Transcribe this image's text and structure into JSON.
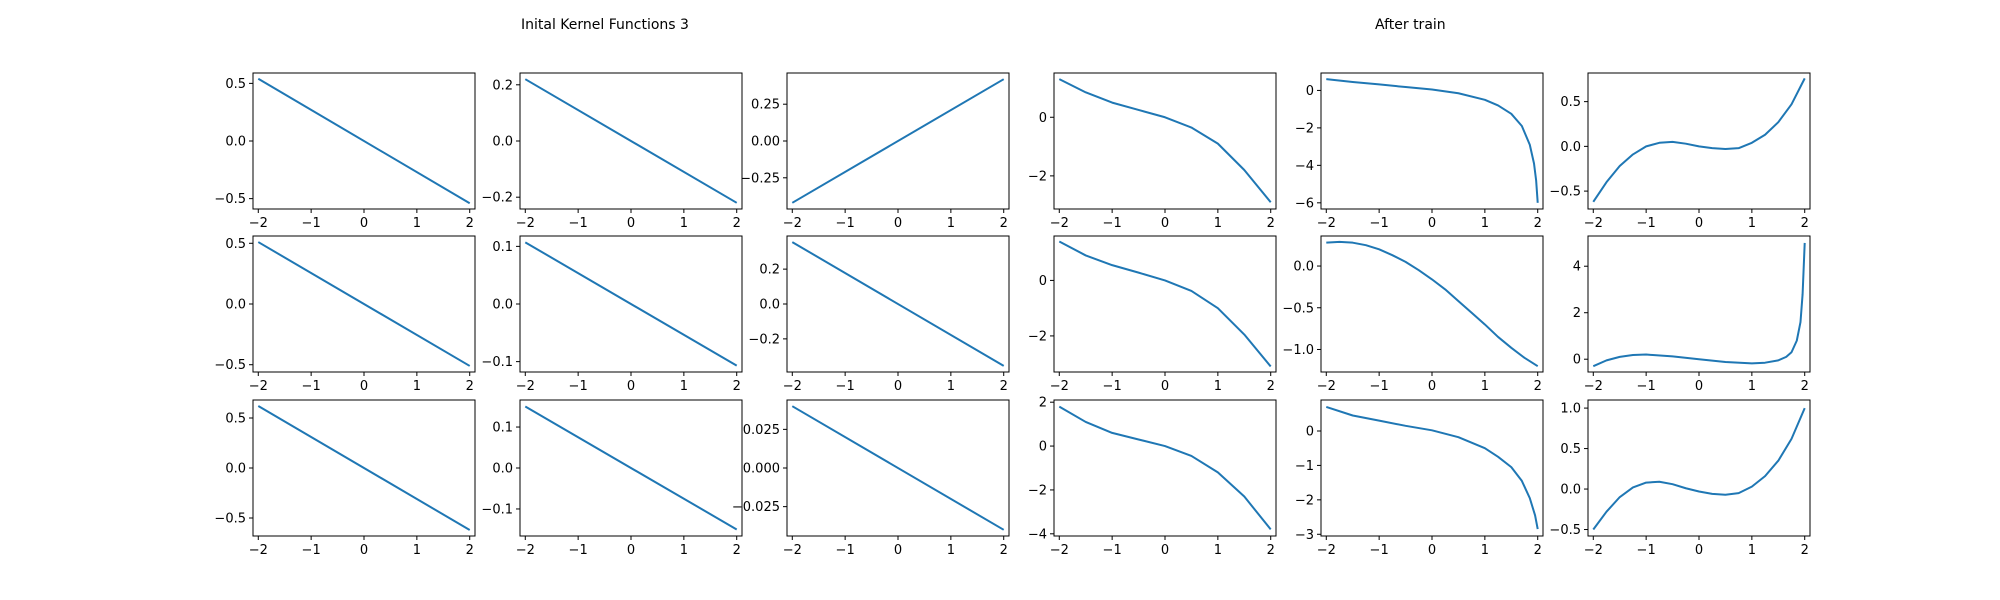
{
  "figure": {
    "title_left": "Inital Kernel Functions 3",
    "title_right": "After train"
  },
  "chart_data": [
    {
      "type": "line",
      "group": "initial",
      "row": 0,
      "col": 0,
      "xlim": [
        -2.1,
        2.1
      ],
      "ylim": [
        -0.59,
        0.59
      ],
      "xticks": [
        -2,
        -1,
        0,
        1,
        2
      ],
      "xtick_labels": [
        "−2",
        "−1",
        "0",
        "1",
        "2"
      ],
      "yticks": [
        0.5,
        0.0,
        -0.5
      ],
      "ytick_labels": [
        "0.5",
        "0.0",
        "−0.5"
      ],
      "x": [
        -2,
        2
      ],
      "y": [
        0.54,
        -0.54
      ],
      "color": "#1f77b4"
    },
    {
      "type": "line",
      "group": "initial",
      "row": 0,
      "col": 1,
      "xlim": [
        -2.1,
        2.1
      ],
      "ylim": [
        -0.242,
        0.242
      ],
      "xticks": [
        -2,
        -1,
        0,
        1,
        2
      ],
      "xtick_labels": [
        "−2",
        "−1",
        "0",
        "1",
        "2"
      ],
      "yticks": [
        0.2,
        0.0,
        -0.2
      ],
      "ytick_labels": [
        "0.2",
        "0.0",
        "−0.2"
      ],
      "x": [
        -2,
        2
      ],
      "y": [
        0.22,
        -0.22
      ],
      "color": "#1f77b4"
    },
    {
      "type": "line",
      "group": "initial",
      "row": 0,
      "col": 2,
      "xlim": [
        -2.1,
        2.1
      ],
      "ylim": [
        -0.462,
        0.462
      ],
      "xticks": [
        -2,
        -1,
        0,
        1,
        2
      ],
      "xtick_labels": [
        "−2",
        "−1",
        "0",
        "1",
        "2"
      ],
      "yticks": [
        0.25,
        0.0,
        -0.25
      ],
      "ytick_labels": [
        "0.25",
        "0.00",
        "−0.25"
      ],
      "x": [
        -2,
        2
      ],
      "y": [
        -0.42,
        0.42
      ],
      "color": "#1f77b4"
    },
    {
      "type": "line",
      "group": "after",
      "row": 0,
      "col": 3,
      "xlim": [
        -2.1,
        2.1
      ],
      "ylim": [
        -3.13,
        1.51
      ],
      "xticks": [
        -2,
        -1,
        0,
        1,
        2
      ],
      "xtick_labels": [
        "−2",
        "−1",
        "0",
        "1",
        "2"
      ],
      "yticks": [
        0,
        -2
      ],
      "ytick_labels": [
        "0",
        "−2"
      ],
      "x": [
        -2,
        -1.5,
        -1,
        -0.5,
        0,
        0.5,
        1,
        1.5,
        2
      ],
      "y": [
        1.3,
        0.85,
        0.5,
        0.25,
        0.0,
        -0.35,
        -0.9,
        -1.8,
        -2.9
      ],
      "color": "#1f77b4"
    },
    {
      "type": "line",
      "group": "after",
      "row": 0,
      "col": 4,
      "xlim": [
        -2.1,
        2.1
      ],
      "ylim": [
        -6.33,
        0.93
      ],
      "xticks": [
        -2,
        -1,
        0,
        1,
        2
      ],
      "xtick_labels": [
        "−2",
        "−1",
        "0",
        "1",
        "2"
      ],
      "yticks": [
        0,
        -2,
        -4,
        -6
      ],
      "ytick_labels": [
        "0",
        "−2",
        "−4",
        "−6"
      ],
      "x": [
        -2,
        -1.5,
        -1,
        -0.5,
        0,
        0.5,
        1,
        1.25,
        1.5,
        1.7,
        1.85,
        1.93,
        1.97,
        2
      ],
      "y": [
        0.6,
        0.45,
        0.32,
        0.18,
        0.05,
        -0.15,
        -0.5,
        -0.8,
        -1.25,
        -1.9,
        -2.9,
        -3.9,
        -4.8,
        -6.0
      ],
      "color": "#1f77b4"
    },
    {
      "type": "line",
      "group": "after",
      "row": 0,
      "col": 5,
      "xlim": [
        -2.1,
        2.1
      ],
      "ylim": [
        -0.7,
        0.82
      ],
      "xticks": [
        -2,
        -1,
        0,
        1,
        2
      ],
      "xtick_labels": [
        "−2",
        "−1",
        "0",
        "1",
        "2"
      ],
      "yticks": [
        0.5,
        0.0,
        -0.5
      ],
      "ytick_labels": [
        "0.5",
        "0.0",
        "−0.5"
      ],
      "x": [
        -2,
        -1.75,
        -1.5,
        -1.25,
        -1,
        -0.75,
        -0.5,
        -0.25,
        0,
        0.25,
        0.5,
        0.75,
        1,
        1.25,
        1.5,
        1.75,
        2
      ],
      "y": [
        -0.62,
        -0.4,
        -0.22,
        -0.09,
        0.0,
        0.04,
        0.05,
        0.03,
        0.0,
        -0.02,
        -0.03,
        -0.02,
        0.04,
        0.13,
        0.27,
        0.47,
        0.76
      ],
      "color": "#1f77b4"
    },
    {
      "type": "line",
      "group": "initial",
      "row": 1,
      "col": 0,
      "xlim": [
        -2.1,
        2.1
      ],
      "ylim": [
        -0.56,
        0.56
      ],
      "xticks": [
        -2,
        -1,
        0,
        1,
        2
      ],
      "xtick_labels": [
        "−2",
        "−1",
        "0",
        "1",
        "2"
      ],
      "yticks": [
        0.5,
        0.0,
        -0.5
      ],
      "ytick_labels": [
        "0.5",
        "0.0",
        "−0.5"
      ],
      "x": [
        -2,
        2
      ],
      "y": [
        0.51,
        -0.51
      ],
      "color": "#1f77b4"
    },
    {
      "type": "line",
      "group": "initial",
      "row": 1,
      "col": 1,
      "xlim": [
        -2.1,
        2.1
      ],
      "ylim": [
        -0.118,
        0.118
      ],
      "xticks": [
        -2,
        -1,
        0,
        1,
        2
      ],
      "xtick_labels": [
        "−2",
        "−1",
        "0",
        "1",
        "2"
      ],
      "yticks": [
        0.1,
        0.0,
        -0.1
      ],
      "ytick_labels": [
        "0.1",
        "0.0",
        "−0.1"
      ],
      "x": [
        -2,
        2
      ],
      "y": [
        0.107,
        -0.107
      ],
      "color": "#1f77b4"
    },
    {
      "type": "line",
      "group": "initial",
      "row": 1,
      "col": 2,
      "xlim": [
        -2.1,
        2.1
      ],
      "ylim": [
        -0.39,
        0.39
      ],
      "xticks": [
        -2,
        -1,
        0,
        1,
        2
      ],
      "xtick_labels": [
        "−2",
        "−1",
        "0",
        "1",
        "2"
      ],
      "yticks": [
        0.2,
        0.0,
        -0.2
      ],
      "ytick_labels": [
        "0.2",
        "0.0",
        "−0.2"
      ],
      "x": [
        -2,
        2
      ],
      "y": [
        0.355,
        -0.355
      ],
      "color": "#1f77b4"
    },
    {
      "type": "line",
      "group": "after",
      "row": 1,
      "col": 3,
      "xlim": [
        -2.1,
        2.1
      ],
      "ylim": [
        -3.3,
        1.6
      ],
      "xticks": [
        -2,
        -1,
        0,
        1,
        2
      ],
      "xtick_labels": [
        "−2",
        "−1",
        "0",
        "1",
        "2"
      ],
      "yticks": [
        0,
        -2
      ],
      "ytick_labels": [
        "0",
        "−2"
      ],
      "x": [
        -2,
        -1.5,
        -1,
        -0.5,
        0,
        0.5,
        1,
        1.5,
        2
      ],
      "y": [
        1.4,
        0.9,
        0.55,
        0.28,
        0.0,
        -0.38,
        -1.0,
        -1.95,
        -3.1
      ],
      "color": "#1f77b4"
    },
    {
      "type": "line",
      "group": "after",
      "row": 1,
      "col": 4,
      "xlim": [
        -2.1,
        2.1
      ],
      "ylim": [
        -1.27,
        0.36
      ],
      "xticks": [
        -2,
        -1,
        0,
        1,
        2
      ],
      "xtick_labels": [
        "−2",
        "−1",
        "0",
        "1",
        "2"
      ],
      "yticks": [
        0.0,
        -0.5,
        -1.0
      ],
      "ytick_labels": [
        "0.0",
        "−0.5",
        "−1.0"
      ],
      "x": [
        -2,
        -1.75,
        -1.5,
        -1.25,
        -1,
        -0.75,
        -0.5,
        -0.25,
        0,
        0.25,
        0.5,
        0.75,
        1,
        1.25,
        1.5,
        1.75,
        2
      ],
      "y": [
        0.28,
        0.29,
        0.28,
        0.25,
        0.2,
        0.13,
        0.05,
        -0.05,
        -0.16,
        -0.28,
        -0.42,
        -0.56,
        -0.7,
        -0.85,
        -0.98,
        -1.1,
        -1.2
      ],
      "color": "#1f77b4"
    },
    {
      "type": "line",
      "group": "after",
      "row": 1,
      "col": 5,
      "xlim": [
        -2.1,
        2.1
      ],
      "ylim": [
        -0.55,
        5.3
      ],
      "xticks": [
        -2,
        -1,
        0,
        1,
        2
      ],
      "xtick_labels": [
        "−2",
        "−1",
        "0",
        "1",
        "2"
      ],
      "yticks": [
        4,
        2,
        0
      ],
      "ytick_labels": [
        "4",
        "2",
        "0"
      ],
      "x": [
        -2,
        -1.75,
        -1.5,
        -1.25,
        -1,
        -0.5,
        0,
        0.5,
        1,
        1.25,
        1.5,
        1.65,
        1.75,
        1.85,
        1.92,
        1.96,
        2
      ],
      "y": [
        -0.3,
        -0.05,
        0.1,
        0.18,
        0.2,
        0.12,
        0.0,
        -0.12,
        -0.18,
        -0.15,
        -0.05,
        0.1,
        0.3,
        0.8,
        1.6,
        2.8,
        5.0
      ],
      "color": "#1f77b4"
    },
    {
      "type": "line",
      "group": "initial",
      "row": 2,
      "col": 0,
      "xlim": [
        -2.1,
        2.1
      ],
      "ylim": [
        -0.68,
        0.68
      ],
      "xticks": [
        -2,
        -1,
        0,
        1,
        2
      ],
      "xtick_labels": [
        "−2",
        "−1",
        "0",
        "1",
        "2"
      ],
      "yticks": [
        0.5,
        0.0,
        -0.5
      ],
      "ytick_labels": [
        "0.5",
        "0.0",
        "−0.5"
      ],
      "x": [
        -2,
        2
      ],
      "y": [
        0.62,
        -0.62
      ],
      "color": "#1f77b4"
    },
    {
      "type": "line",
      "group": "initial",
      "row": 2,
      "col": 1,
      "xlim": [
        -2.1,
        2.1
      ],
      "ylim": [
        -0.166,
        0.166
      ],
      "xticks": [
        -2,
        -1,
        0,
        1,
        2
      ],
      "xtick_labels": [
        "−2",
        "−1",
        "0",
        "1",
        "2"
      ],
      "yticks": [
        0.1,
        0.0,
        -0.1
      ],
      "ytick_labels": [
        "0.1",
        "0.0",
        "−0.1"
      ],
      "x": [
        -2,
        2
      ],
      "y": [
        0.15,
        -0.15
      ],
      "color": "#1f77b4"
    },
    {
      "type": "line",
      "group": "initial",
      "row": 2,
      "col": 2,
      "xlim": [
        -2.1,
        2.1
      ],
      "ylim": [
        -0.044,
        0.044
      ],
      "xticks": [
        -2,
        -1,
        0,
        1,
        2
      ],
      "xtick_labels": [
        "−2",
        "−1",
        "0",
        "1",
        "2"
      ],
      "yticks": [
        0.025,
        0.0,
        -0.025
      ],
      "ytick_labels": [
        "0.025",
        "0.000",
        "−0.025"
      ],
      "x": [
        -2,
        2
      ],
      "y": [
        0.04,
        -0.04
      ],
      "color": "#1f77b4"
    },
    {
      "type": "line",
      "group": "after",
      "row": 2,
      "col": 3,
      "xlim": [
        -2.1,
        2.1
      ],
      "ylim": [
        -4.1,
        2.1
      ],
      "xticks": [
        -2,
        -1,
        0,
        1,
        2
      ],
      "xtick_labels": [
        "−2",
        "−1",
        "0",
        "1",
        "2"
      ],
      "yticks": [
        2,
        0,
        -2,
        -4
      ],
      "ytick_labels": [
        "2",
        "0",
        "−2",
        "−4"
      ],
      "x": [
        -2,
        -1.5,
        -1,
        -0.5,
        0,
        0.5,
        1,
        1.5,
        2
      ],
      "y": [
        1.8,
        1.1,
        0.6,
        0.3,
        0.0,
        -0.45,
        -1.2,
        -2.3,
        -3.8
      ],
      "color": "#1f77b4"
    },
    {
      "type": "line",
      "group": "after",
      "row": 2,
      "col": 4,
      "xlim": [
        -2.1,
        2.1
      ],
      "ylim": [
        -3.05,
        0.9
      ],
      "xticks": [
        -2,
        -1,
        0,
        1,
        2
      ],
      "xtick_labels": [
        "−2",
        "−1",
        "0",
        "1",
        "2"
      ],
      "yticks": [
        0,
        -1,
        -2,
        -3
      ],
      "ytick_labels": [
        "0",
        "−1",
        "−2",
        "−3"
      ],
      "x": [
        -2,
        -1.5,
        -1,
        -0.5,
        0,
        0.5,
        1,
        1.25,
        1.5,
        1.7,
        1.85,
        1.95,
        2
      ],
      "y": [
        0.7,
        0.45,
        0.3,
        0.15,
        0.02,
        -0.18,
        -0.5,
        -0.75,
        -1.05,
        -1.45,
        -1.95,
        -2.45,
        -2.85
      ],
      "color": "#1f77b4"
    },
    {
      "type": "line",
      "group": "after",
      "row": 2,
      "col": 5,
      "xlim": [
        -2.1,
        2.1
      ],
      "ylim": [
        -0.58,
        1.1
      ],
      "xticks": [
        -2,
        -1,
        0,
        1,
        2
      ],
      "xtick_labels": [
        "−2",
        "−1",
        "0",
        "1",
        "2"
      ],
      "yticks": [
        1.0,
        0.5,
        0.0,
        -0.5
      ],
      "ytick_labels": [
        "1.0",
        "0.5",
        "0.0",
        "−0.5"
      ],
      "x": [
        -2,
        -1.75,
        -1.5,
        -1.25,
        -1,
        -0.75,
        -0.5,
        -0.25,
        0,
        0.25,
        0.5,
        0.75,
        1,
        1.25,
        1.5,
        1.75,
        2
      ],
      "y": [
        -0.5,
        -0.28,
        -0.1,
        0.02,
        0.08,
        0.09,
        0.06,
        0.01,
        -0.03,
        -0.06,
        -0.07,
        -0.05,
        0.03,
        0.16,
        0.35,
        0.62,
        1.0
      ],
      "color": "#1f77b4"
    }
  ]
}
